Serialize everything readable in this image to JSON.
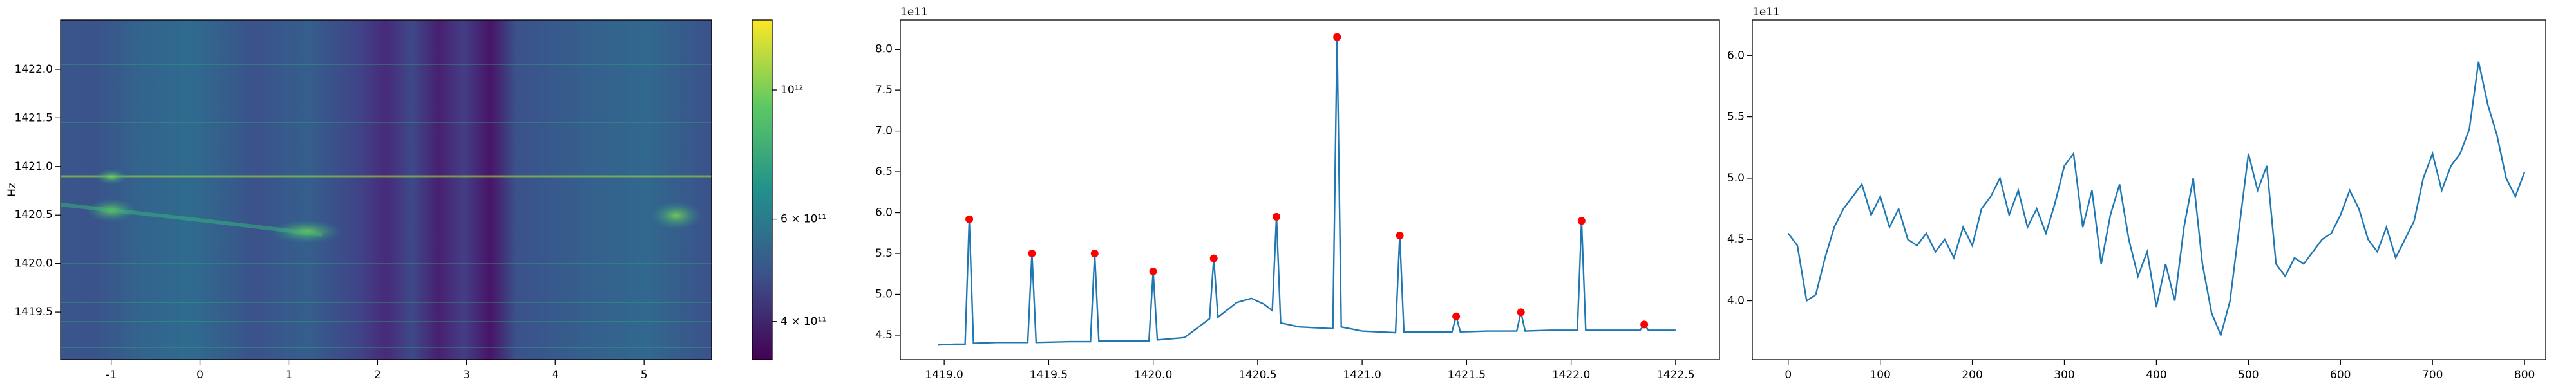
{
  "chart_data": [
    {
      "type": "heatmap",
      "ylabel": "Hz",
      "colormap": "viridis",
      "xlim": [
        -1.57,
        5.76
      ],
      "xticks": [
        -1,
        0,
        1,
        2,
        3,
        4,
        5
      ],
      "ylim": [
        1419.01,
        1422.51
      ],
      "yticks": [
        1419.5,
        {
          "value": 1420,
          "label": "1420.0"
        },
        1420.5,
        {
          "value": 1421,
          "label": "1421.0"
        },
        1421.5,
        {
          "value": 1422,
          "label": "1422.0"
        }
      ],
      "colorbar": {
        "scale": "log",
        "lim": [
          344000000000,
          1320000000000
        ],
        "ticks": [
          {
            "value": 1000000000000,
            "label": "10¹²"
          },
          {
            "value": 600000000000,
            "label": "6 × 10¹¹"
          },
          {
            "value": 400000000000,
            "label": "4 × 10¹¹"
          }
        ]
      }
    },
    {
      "type": "line",
      "y_offset_label": "1e11",
      "color": "#1f77b4",
      "xlim": [
        1418.79,
        1422.71
      ],
      "xticks": [
        {
          "value": 1419,
          "label": "1419.0"
        },
        1419.5,
        {
          "value": 1420,
          "label": "1420.0"
        },
        1420.5,
        {
          "value": 1421,
          "label": "1421.0"
        },
        1421.5,
        {
          "value": 1422,
          "label": "1422.0"
        },
        1422.5
      ],
      "ylim": [
        4.2,
        8.36
      ],
      "yticks": [
        4.5,
        {
          "value": 5,
          "label": "5.0"
        },
        5.5,
        {
          "value": 6,
          "label": "6.0"
        },
        6.5,
        {
          "value": 7,
          "label": "7.0"
        },
        7.5,
        {
          "value": 8,
          "label": "8.0"
        }
      ],
      "x": [
        1418.97,
        1419.05,
        1419.1,
        1419.12,
        1419.14,
        1419.25,
        1419.4,
        1419.42,
        1419.44,
        1419.6,
        1419.7,
        1419.72,
        1419.74,
        1419.9,
        1419.98,
        1420.0,
        1420.02,
        1420.15,
        1420.27,
        1420.29,
        1420.31,
        1420.4,
        1420.47,
        1420.53,
        1420.57,
        1420.59,
        1420.61,
        1420.7,
        1420.86,
        1420.88,
        1420.9,
        1421.0,
        1421.16,
        1421.18,
        1421.2,
        1421.35,
        1421.43,
        1421.45,
        1421.47,
        1421.6,
        1421.74,
        1421.76,
        1421.78,
        1421.9,
        1422.03,
        1422.05,
        1422.07,
        1422.2,
        1422.33,
        1422.35,
        1422.37,
        1422.5
      ],
      "values": [
        4.38,
        4.39,
        4.39,
        5.92,
        4.4,
        4.41,
        4.41,
        5.5,
        4.41,
        4.42,
        4.42,
        5.5,
        4.43,
        4.43,
        4.43,
        5.28,
        4.44,
        4.47,
        4.7,
        5.44,
        4.72,
        4.9,
        4.95,
        4.88,
        4.8,
        5.95,
        4.65,
        4.6,
        4.58,
        8.15,
        4.6,
        4.55,
        4.53,
        5.72,
        4.54,
        4.54,
        4.54,
        4.73,
        4.54,
        4.55,
        4.55,
        4.78,
        4.55,
        4.56,
        4.56,
        5.9,
        4.56,
        4.56,
        4.56,
        4.63,
        4.56,
        4.56
      ],
      "peaks_color": "#ff0000",
      "peaks_x": [
        1419.12,
        1419.42,
        1419.72,
        1420.0,
        1420.29,
        1420.59,
        1420.88,
        1421.18,
        1421.45,
        1421.76,
        1422.05,
        1422.35
      ],
      "peaks_values": [
        5.92,
        5.5,
        5.5,
        5.28,
        5.44,
        5.95,
        8.15,
        5.72,
        4.73,
        4.78,
        5.9,
        4.63
      ]
    },
    {
      "type": "line",
      "y_offset_label": "1e11",
      "color": "#1f77b4",
      "xlim": [
        -39,
        823
      ],
      "xticks": [
        0,
        100,
        200,
        300,
        400,
        500,
        600,
        700,
        800
      ],
      "ylim": [
        3.52,
        6.29
      ],
      "yticks": [
        {
          "value": 4,
          "label": "4.0"
        },
        4.5,
        {
          "value": 5,
          "label": "5.0"
        },
        5.5,
        {
          "value": 6,
          "label": "6.0"
        }
      ],
      "x": [
        0,
        10,
        20,
        30,
        40,
        50,
        60,
        70,
        80,
        90,
        100,
        110,
        120,
        130,
        140,
        150,
        160,
        170,
        180,
        190,
        200,
        210,
        220,
        230,
        240,
        250,
        260,
        270,
        280,
        290,
        300,
        310,
        320,
        330,
        340,
        350,
        360,
        370,
        380,
        390,
        400,
        410,
        420,
        430,
        440,
        450,
        460,
        470,
        480,
        490,
        500,
        510,
        520,
        530,
        540,
        550,
        560,
        570,
        580,
        590,
        600,
        610,
        620,
        630,
        640,
        650,
        660,
        670,
        680,
        690,
        700,
        710,
        720,
        730,
        740,
        750,
        760,
        770,
        780,
        790,
        800
      ],
      "values": [
        4.55,
        4.45,
        4.0,
        4.05,
        4.35,
        4.6,
        4.75,
        4.85,
        4.95,
        4.7,
        4.85,
        4.6,
        4.75,
        4.5,
        4.45,
        4.55,
        4.4,
        4.5,
        4.35,
        4.6,
        4.45,
        4.75,
        4.85,
        5.0,
        4.7,
        4.9,
        4.6,
        4.75,
        4.55,
        4.8,
        5.1,
        5.2,
        4.6,
        4.9,
        4.3,
        4.7,
        4.95,
        4.5,
        4.2,
        4.4,
        3.95,
        4.3,
        4.0,
        4.6,
        5.0,
        4.3,
        3.9,
        3.72,
        4.0,
        4.6,
        5.2,
        4.9,
        5.1,
        4.3,
        4.2,
        4.35,
        4.3,
        4.4,
        4.5,
        4.55,
        4.7,
        4.9,
        4.75,
        4.5,
        4.4,
        4.6,
        4.35,
        4.5,
        4.65,
        5.0,
        5.2,
        4.9,
        5.1,
        5.2,
        5.4,
        5.95,
        5.6,
        5.35,
        5.0,
        4.85,
        5.05
      ]
    }
  ]
}
